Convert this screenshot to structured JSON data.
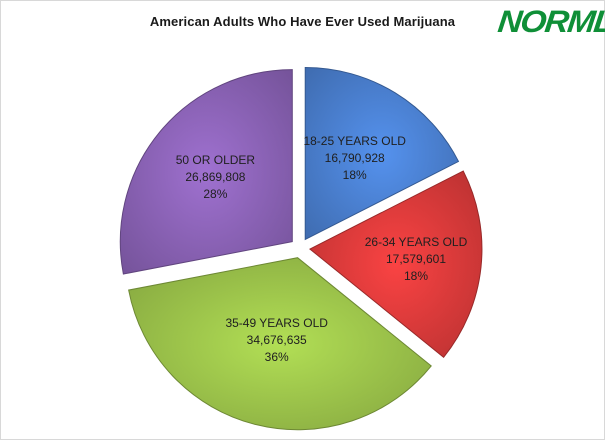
{
  "brand": {
    "logo_text": "NORML",
    "logo_color": "#0f8f37"
  },
  "chart_data": {
    "type": "pie",
    "title": "American Adults Who Have Ever Used Marijuana",
    "slices": [
      {
        "label": "18-25 YEARS OLD",
        "value": 16790928,
        "value_text": "16,790,928",
        "percent": 18,
        "percent_text": "18%",
        "color": "#4a7fcf",
        "exploded": true
      },
      {
        "label": "26-34 YEARS OLD",
        "value": 17579601,
        "value_text": "17,579,601",
        "percent": 18,
        "percent_text": "18%",
        "color": "#d93a3a",
        "exploded": true
      },
      {
        "label": "35-49 YEARS OLD",
        "value": 34676635,
        "value_text": "34,676,635",
        "percent": 36,
        "percent_text": "36%",
        "color": "#9bc24a",
        "exploded": true
      },
      {
        "label": "50 OR OLDER",
        "value": 26869808,
        "value_text": "26,869,808",
        "percent": 28,
        "percent_text": "28%",
        "color": "#8a62b5",
        "exploded": true
      }
    ],
    "legend": "none"
  }
}
